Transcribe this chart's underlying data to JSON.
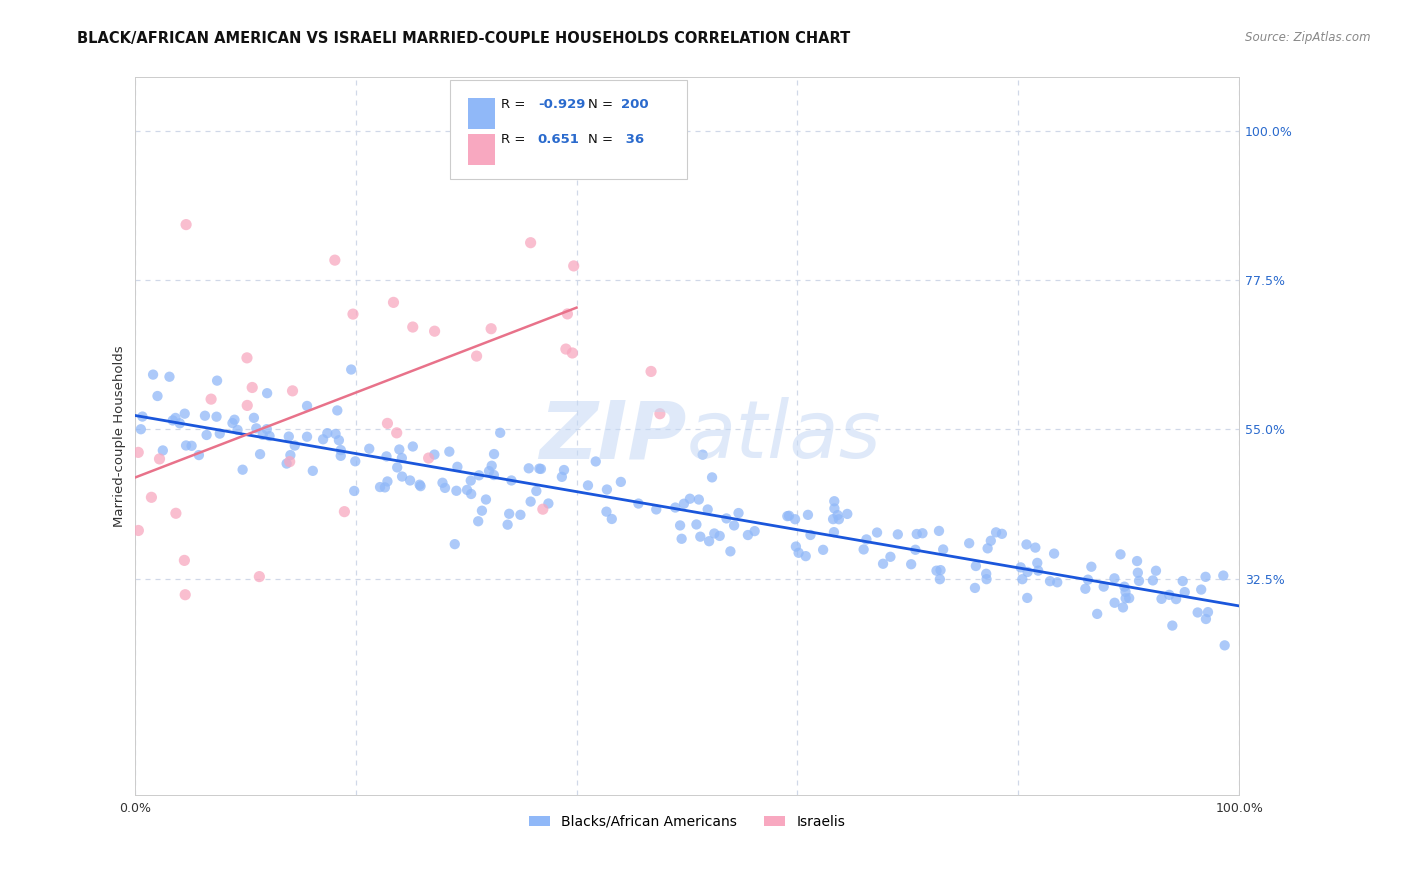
{
  "title": "BLACK/AFRICAN AMERICAN VS ISRAELI MARRIED-COUPLE HOUSEHOLDS CORRELATION CHART",
  "source": "Source: ZipAtlas.com",
  "ylabel": "Married-couple Households",
  "xlim": [
    0.0,
    1.0
  ],
  "ylim": [
    0.0,
    1.08
  ],
  "ytick_positions": [
    1.0,
    0.775,
    0.55,
    0.325
  ],
  "ytick_labels": [
    "100.0%",
    "77.5%",
    "55.0%",
    "32.5%"
  ],
  "blue_R": -0.929,
  "blue_N": 200,
  "pink_R": 0.651,
  "pink_N": 36,
  "blue_scatter_color": "#90b8f8",
  "pink_scatter_color": "#f8a8c0",
  "blue_line_color": "#1a56db",
  "pink_line_color": "#e8728a",
  "legend_label_blue": "Blacks/African Americans",
  "legend_label_pink": "Israelis",
  "grid_color": "#d0d8e8",
  "background_color": "#ffffff",
  "right_label_color": "#2a6acd",
  "blue_seed": 42,
  "pink_seed": 99
}
